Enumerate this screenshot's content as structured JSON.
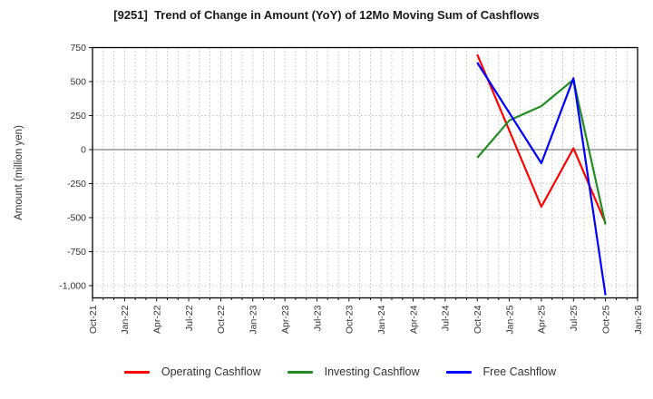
{
  "header": {
    "title": "[9251]  Trend of Change in Amount (YoY) of 12Mo Moving Sum of Cashflows"
  },
  "chart_data": {
    "type": "line",
    "title": "[9251]  Trend of Change in Amount (YoY) of 12Mo Moving Sum of Cashflows",
    "xlabel": "",
    "ylabel": "Amount (million yen)",
    "x_tick_labels": [
      "Oct-21",
      "Jan-22",
      "Apr-22",
      "Jul-22",
      "Oct-22",
      "Jan-23",
      "Apr-23",
      "Jul-23",
      "Oct-23",
      "Jan-24",
      "Apr-24",
      "Jul-24",
      "Oct-24",
      "Jan-25",
      "Apr-25",
      "Jul-25",
      "Oct-25",
      "Jan-26"
    ],
    "y_tick_values": [
      750,
      500,
      250,
      0,
      -250,
      -500,
      -750,
      -1000
    ],
    "y_tick_labels": [
      "750",
      "500",
      "250",
      "0",
      "-250",
      "-500",
      "-750",
      "-1,000"
    ],
    "ylim": [
      -1090,
      750
    ],
    "grid": true,
    "legend_position": "bottom",
    "series": [
      {
        "name": "Operating Cashflow",
        "color": "#ff0000",
        "x": [
          "Oct-24",
          "Jan-25",
          "Apr-25",
          "Jul-25",
          "Oct-25"
        ],
        "values": [
          700,
          140,
          -420,
          10,
          -540
        ]
      },
      {
        "name": "Investing Cashflow",
        "color": "#228b22",
        "x": [
          "Oct-24",
          "Jan-25",
          "Apr-25",
          "Jul-25",
          "Oct-25"
        ],
        "values": [
          -60,
          215,
          320,
          515,
          -550
        ]
      },
      {
        "name": "Free Cashflow",
        "color": "#0000ff",
        "x": [
          "Oct-24",
          "Jan-25",
          "Apr-25",
          "Jul-25",
          "Oct-25"
        ],
        "values": [
          640,
          270,
          -100,
          525,
          -1070
        ]
      }
    ]
  },
  "colors": {
    "background": "#ffffff",
    "frame": "#000000",
    "grid": "#b0b0b0",
    "zero_line": "#808080",
    "tick_text": "#333333",
    "title_text": "#1a1a1a",
    "legend_text": "#333333"
  }
}
